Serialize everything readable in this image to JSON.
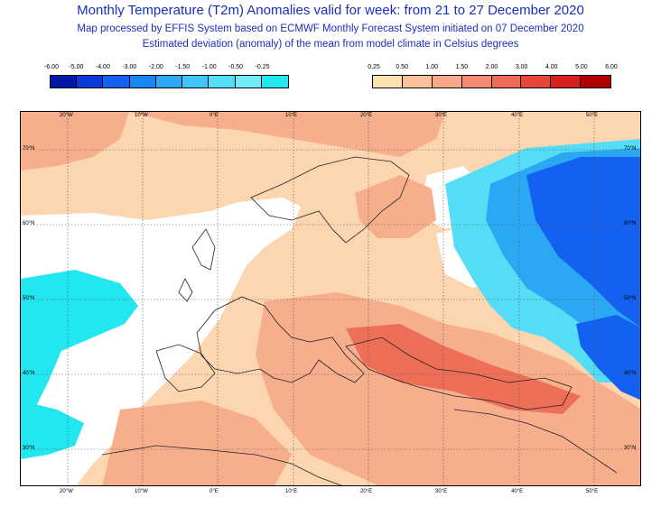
{
  "header": {
    "title": "Monthly Temperature (T2m) Anomalies valid for week: from 21 to 27 December 2020",
    "subtitle": "Map processed by EFFIS System based on ECMWF Monthly Forecast System initiated on 07 December 2020",
    "description": "Estimated deviation (anomaly) of the mean from model climate in Celsius degrees"
  },
  "legend": {
    "negative": {
      "labels": [
        "-6.00",
        "-5.00",
        "-4.00",
        "-3.00",
        "-2.00",
        "-1.50",
        "-1.00",
        "-0.50",
        "-0.25"
      ],
      "colors": [
        "#0018a8",
        "#0a3ad8",
        "#1460f0",
        "#1a86f2",
        "#2aa8f4",
        "#3fc6f5",
        "#55dcf6",
        "#6eecf8",
        "#22e6f0"
      ]
    },
    "positive": {
      "labels": [
        "0.25",
        "0.50",
        "1.00",
        "1.50",
        "2.00",
        "3.00",
        "4.00",
        "5.00",
        "6.00"
      ],
      "colors": [
        "#fde0b0",
        "#f9c29a",
        "#f6a888",
        "#f48c74",
        "#ef6a56",
        "#e8463a",
        "#d82020",
        "#b00000"
      ]
    }
  },
  "map": {
    "top_lon_labels": [
      "20°W",
      "10°W",
      "0°E",
      "10°E",
      "20°E",
      "30°E",
      "40°E",
      "50°E"
    ],
    "bottom_lon_labels": [
      "20°W",
      "10°W",
      "0°E",
      "10°E",
      "20°E",
      "30°E",
      "40°E",
      "50°E"
    ],
    "lat_labels": [
      "70°N",
      "60°N",
      "50°N",
      "40°N",
      "30°N"
    ],
    "colors": {
      "warm_light": "#fbd6b0",
      "warm_mid": "#f7ae8c",
      "warm_strong": "#ee6f58",
      "cold_light": "#22e6f0",
      "cold_mid": "#2aa8f4",
      "cold_strong": "#0a3ad8",
      "neutral": "#ffffff"
    }
  }
}
